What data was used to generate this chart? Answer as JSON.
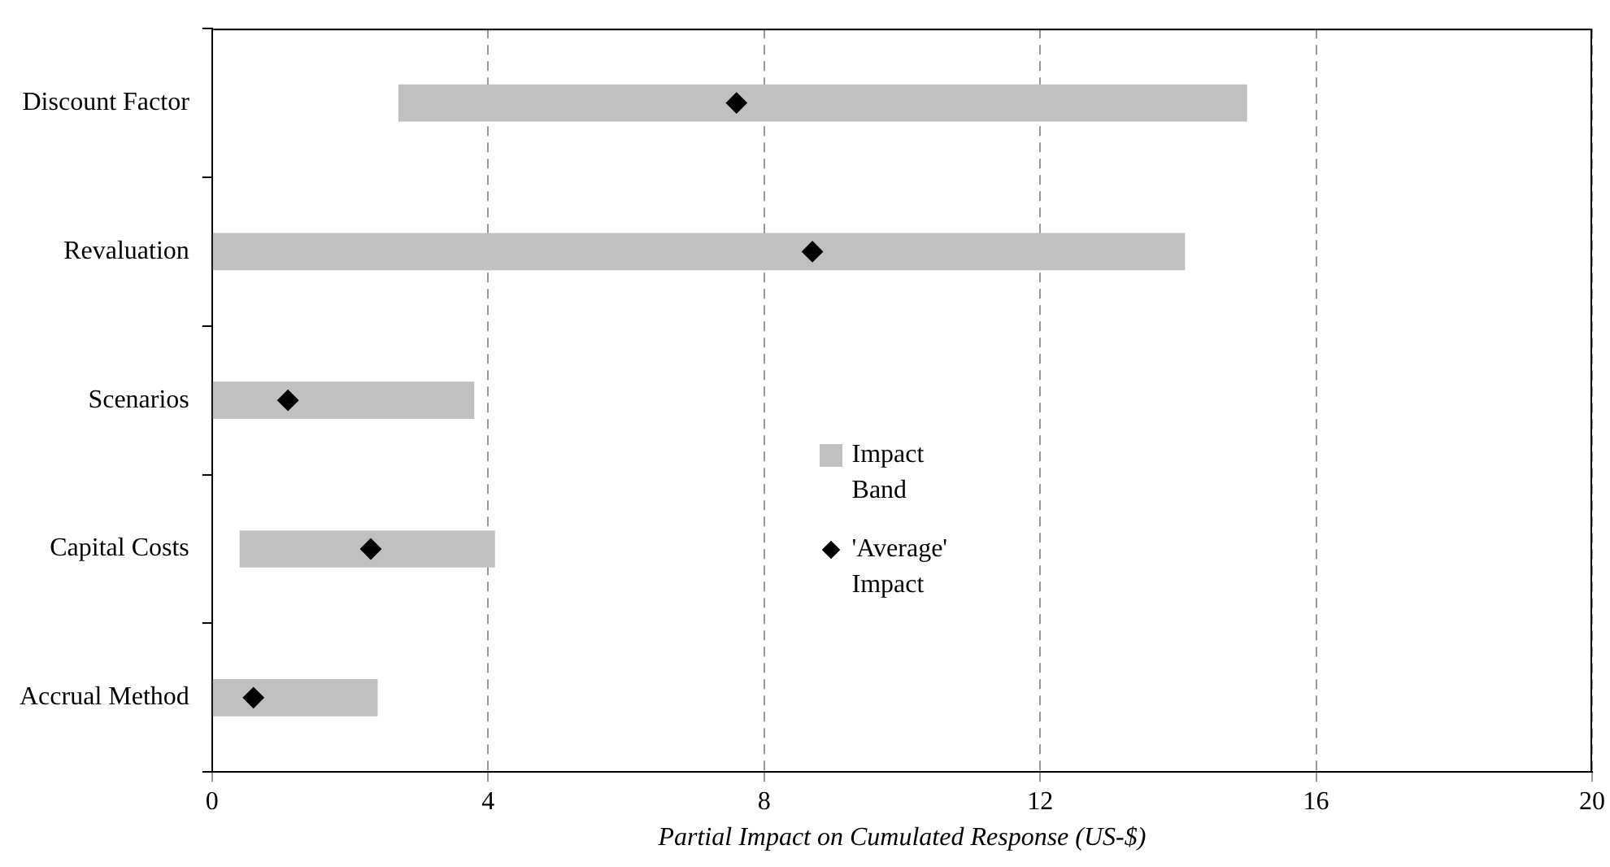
{
  "chart_data": {
    "type": "bar",
    "orientation": "horizontal",
    "xlabel": "Partial Impact on Cumulated Response (US-$)",
    "categories": [
      "Discount Factor",
      "Revaluation",
      "Scenarios",
      "Capital Costs",
      "Accrual Method"
    ],
    "series": [
      {
        "name": "Impact Band",
        "color": "#c0c0c0",
        "base": [
          2.7,
          0,
          0,
          0.4,
          0
        ],
        "values": [
          12.3,
          14.1,
          3.8,
          3.7,
          2.4
        ]
      },
      {
        "name": "'Average' Impact",
        "type": "scatter",
        "color": "#000000",
        "marker": "diamond",
        "x": [
          "Discount Factor",
          "Revaluation",
          "Scenarios",
          "Capital Costs",
          "Accrual Method"
        ],
        "values": [
          7.6,
          8.7,
          1.1,
          2.3,
          0.6
        ]
      }
    ],
    "xlim": [
      0,
      20
    ],
    "xticks": [
      0,
      4,
      8,
      12,
      16,
      20
    ],
    "grid": "x",
    "legend": "center"
  }
}
